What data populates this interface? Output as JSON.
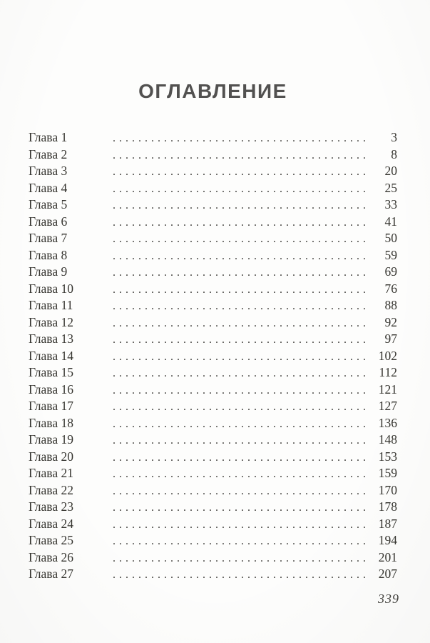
{
  "page": {
    "title": "ОГЛАВЛЕНИЕ",
    "folio_page_number": "339"
  },
  "toc": {
    "entries": [
      {
        "label": "Глава 1",
        "page": "3"
      },
      {
        "label": "Глава 2",
        "page": "8"
      },
      {
        "label": "Глава 3",
        "page": "20"
      },
      {
        "label": "Глава 4",
        "page": "25"
      },
      {
        "label": "Глава 5",
        "page": "33"
      },
      {
        "label": "Глава 6",
        "page": "41"
      },
      {
        "label": "Глава 7",
        "page": "50"
      },
      {
        "label": "Глава 8",
        "page": "59"
      },
      {
        "label": "Глава 9",
        "page": "69"
      },
      {
        "label": "Глава 10",
        "page": "76"
      },
      {
        "label": "Глава 11",
        "page": "88"
      },
      {
        "label": "Глава 12",
        "page": "92"
      },
      {
        "label": "Глава 13",
        "page": "97"
      },
      {
        "label": "Глава 14",
        "page": "102"
      },
      {
        "label": "Глава 15",
        "page": "112"
      },
      {
        "label": "Глава 16",
        "page": "121"
      },
      {
        "label": "Глава 17",
        "page": "127"
      },
      {
        "label": "Глава 18",
        "page": "136"
      },
      {
        "label": "Глава 19",
        "page": "148"
      },
      {
        "label": "Глава 20",
        "page": "153"
      },
      {
        "label": "Глава 21",
        "page": "159"
      },
      {
        "label": "Глава 22",
        "page": "170"
      },
      {
        "label": "Глава 23",
        "page": "178"
      },
      {
        "label": "Глава 24",
        "page": "187"
      },
      {
        "label": "Глава 25",
        "page": "194"
      },
      {
        "label": "Глава 26",
        "page": "201"
      },
      {
        "label": "Глава 27",
        "page": "207"
      }
    ]
  },
  "colors": {
    "background": "#fdfdfc",
    "title_text": "#525150",
    "body_text": "#35342f"
  }
}
